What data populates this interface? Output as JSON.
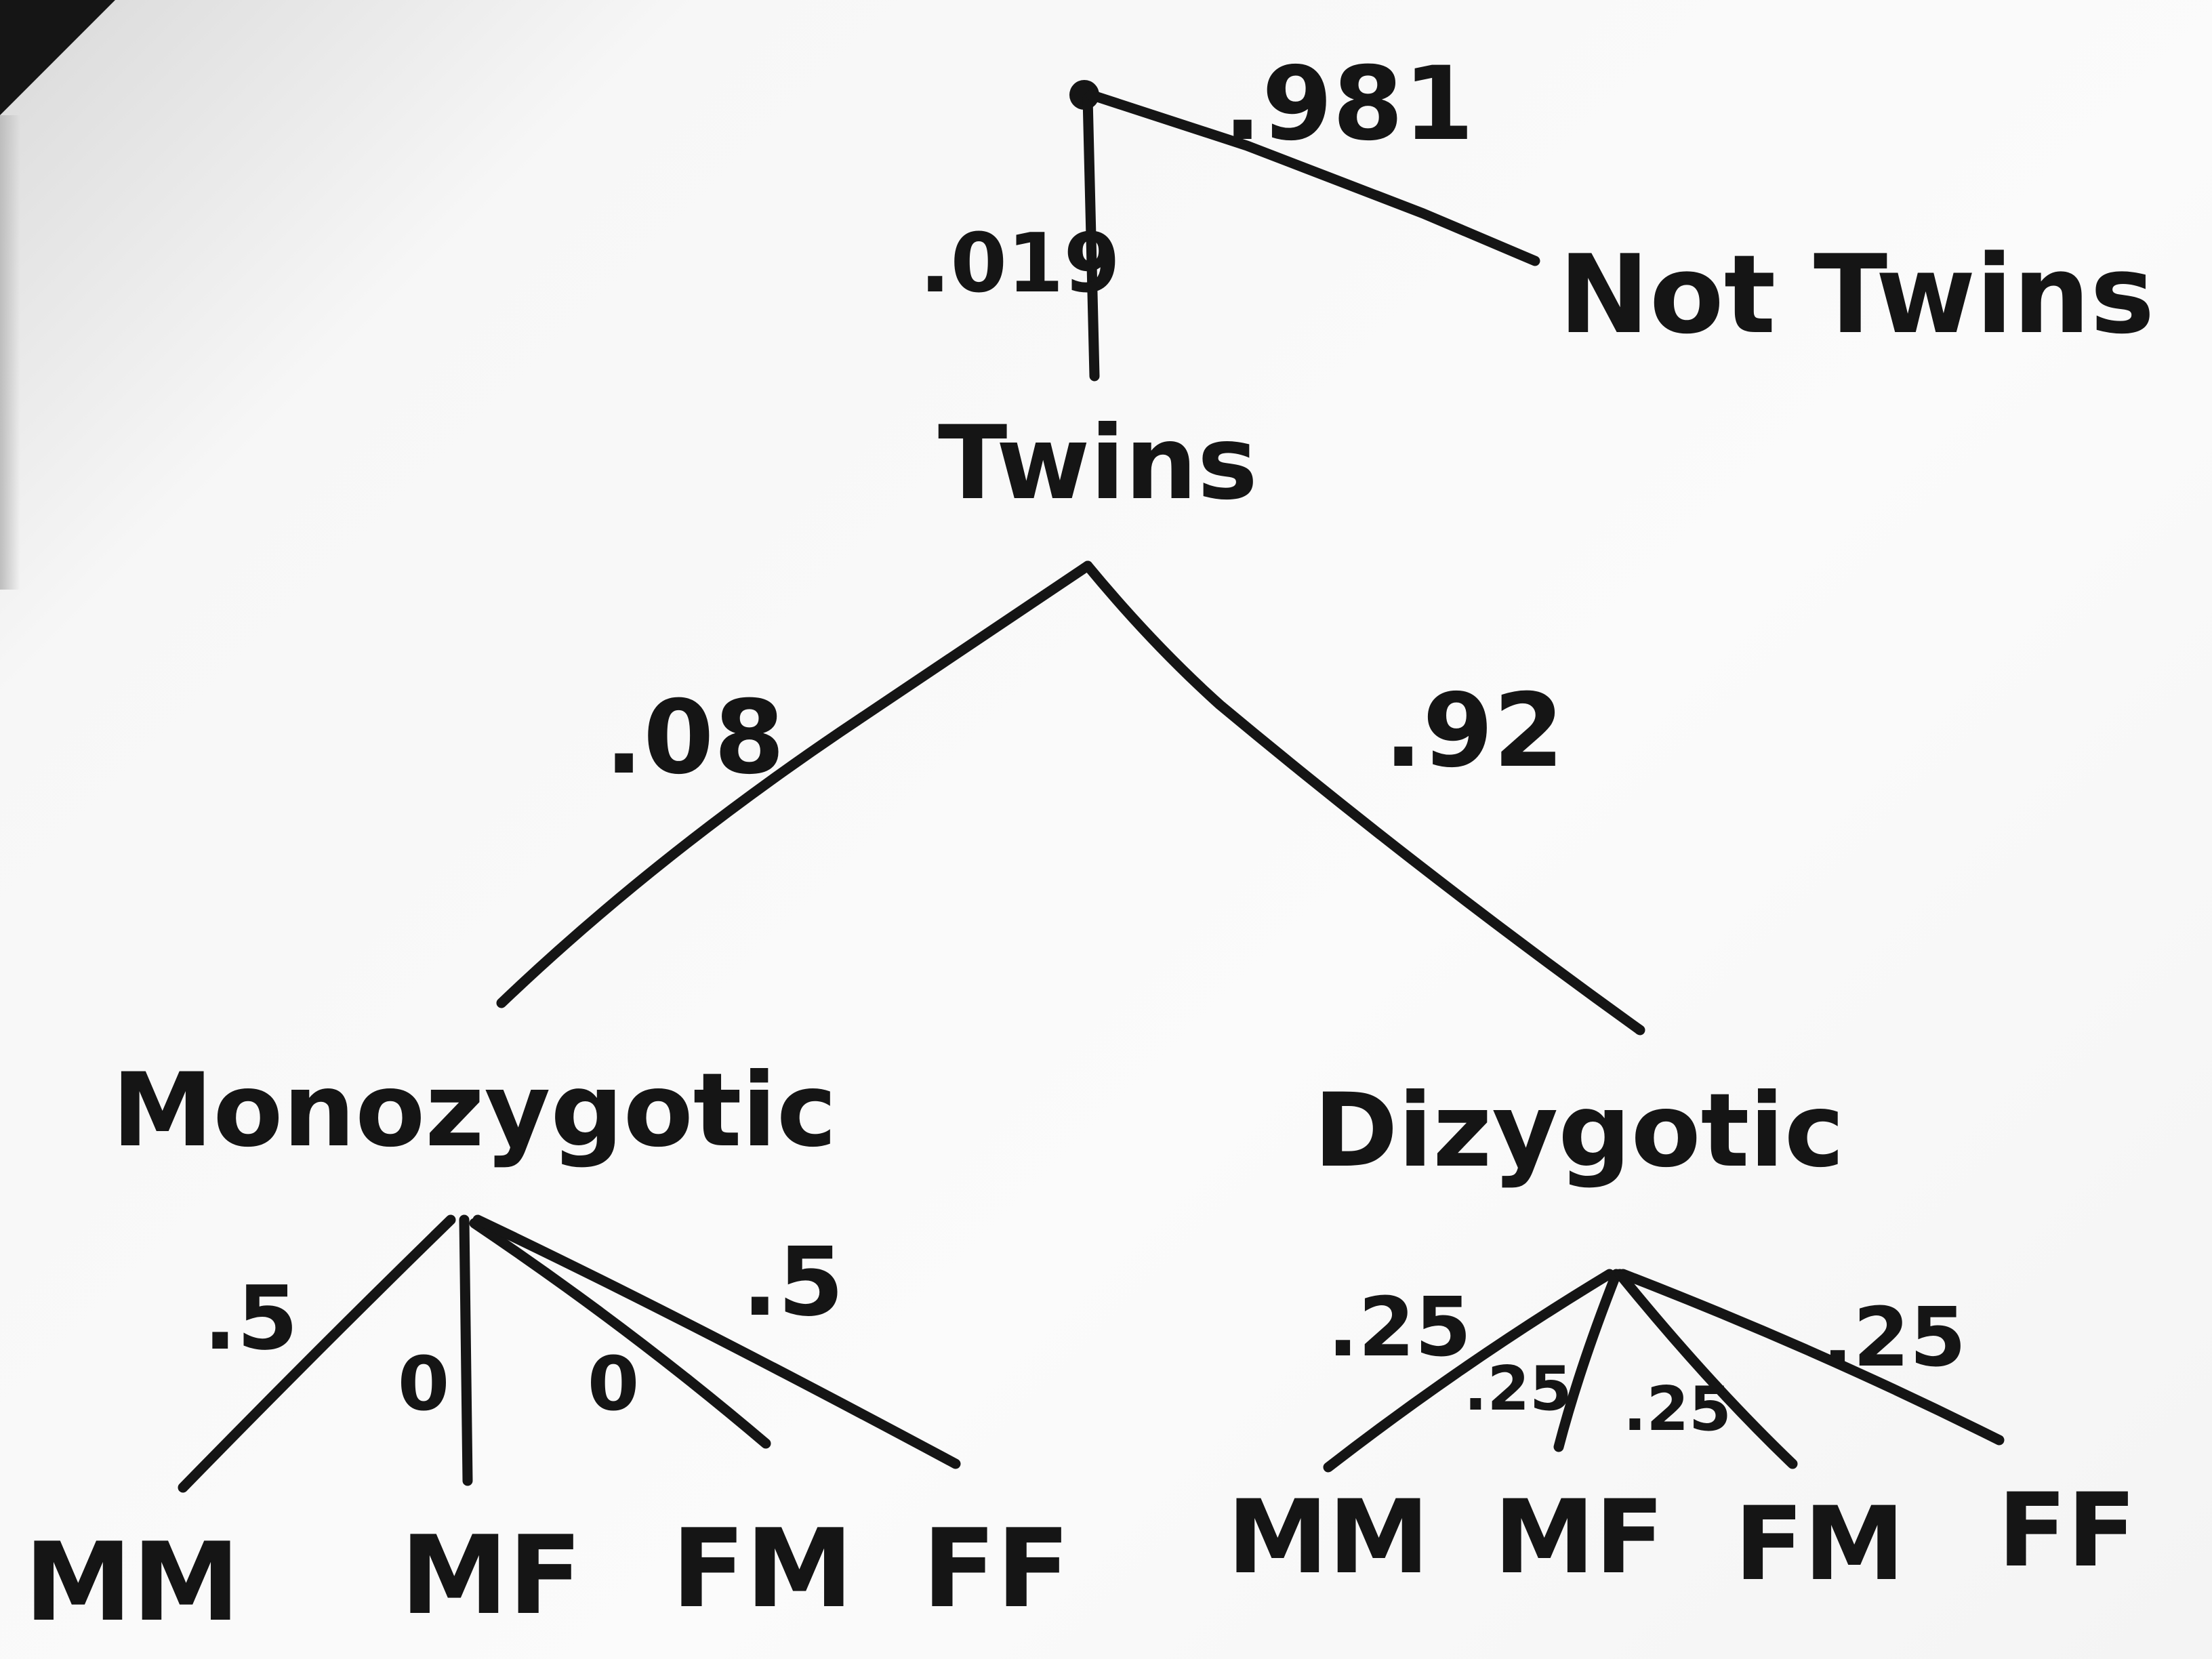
{
  "diagram": {
    "type": "probability-tree",
    "root": {
      "branches": [
        {
          "label": "Twins",
          "prob": ".019"
        },
        {
          "label": "Not Twins",
          "prob": ".981"
        }
      ]
    },
    "twins": {
      "label": "Twins",
      "branches": [
        {
          "label": "Monozygotic",
          "prob": ".08"
        },
        {
          "label": "Dizygotic",
          "prob": ".92"
        }
      ]
    },
    "monozygotic": {
      "label": "Monozygotic",
      "leaves": [
        {
          "label": "MM",
          "prob": ".5"
        },
        {
          "label": "MF",
          "prob": "0"
        },
        {
          "label": "FM",
          "prob": "0"
        },
        {
          "label": "FF",
          "prob": ".5"
        }
      ]
    },
    "dizygotic": {
      "label": "Dizygotic",
      "leaves": [
        {
          "label": "MM",
          "prob": ".25"
        },
        {
          "label": "MF",
          "prob": ".25"
        },
        {
          "label": "FM",
          "prob": ".25"
        },
        {
          "label": "FF",
          "prob": ".25"
        }
      ]
    }
  }
}
